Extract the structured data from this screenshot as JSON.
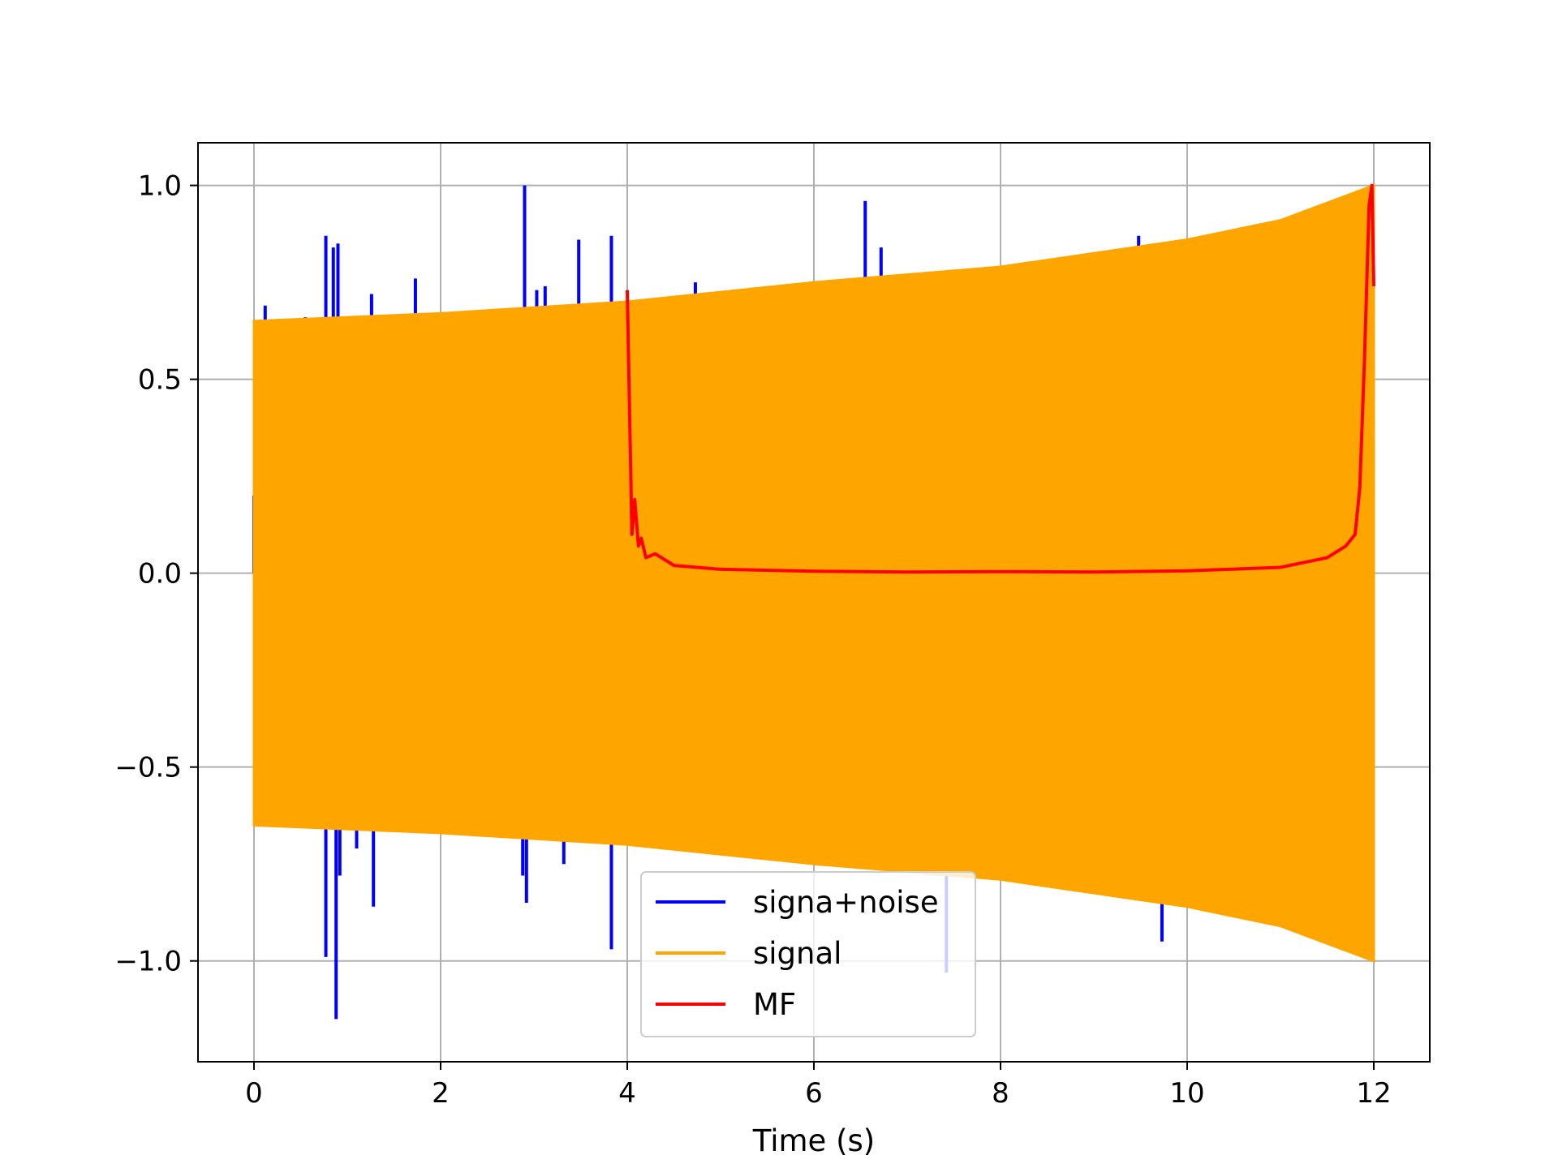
{
  "chart_data": {
    "type": "line",
    "title": "",
    "xlabel": "Time (s)",
    "ylabel": "",
    "xlim": [
      -0.6,
      12.6
    ],
    "ylim": [
      -1.26,
      1.11
    ],
    "xticks": [
      0,
      2,
      4,
      6,
      8,
      10,
      12
    ],
    "xtick_labels": [
      "0",
      "2",
      "4",
      "6",
      "8",
      "10",
      "12"
    ],
    "yticks": [
      1.0,
      0.5,
      0.0,
      -0.5,
      -1.0
    ],
    "ytick_labels": [
      "1.0",
      "0.5",
      "0.0",
      "−0.5",
      "−1.0"
    ],
    "grid": true,
    "legend_position": "lower-center",
    "series": [
      {
        "name": "signa+noise",
        "color": "#0000ff",
        "spikes": [
          {
            "x": 0.0,
            "y": 0.2
          },
          {
            "x": 0.12,
            "y": 0.69
          },
          {
            "x": 0.55,
            "y": 0.66
          },
          {
            "x": 0.77,
            "y": 0.87
          },
          {
            "x": 0.77,
            "y": -0.99
          },
          {
            "x": 0.85,
            "y": 0.84
          },
          {
            "x": 0.88,
            "y": -1.15
          },
          {
            "x": 0.9,
            "y": 0.85
          },
          {
            "x": 0.92,
            "y": -0.78
          },
          {
            "x": 1.1,
            "y": -0.71
          },
          {
            "x": 1.26,
            "y": 0.72
          },
          {
            "x": 1.28,
            "y": -0.86
          },
          {
            "x": 1.73,
            "y": 0.76
          },
          {
            "x": 2.9,
            "y": 1.0
          },
          {
            "x": 2.88,
            "y": -0.78
          },
          {
            "x": 2.92,
            "y": -0.85
          },
          {
            "x": 3.03,
            "y": 0.73
          },
          {
            "x": 3.12,
            "y": 0.74
          },
          {
            "x": 3.32,
            "y": -0.75
          },
          {
            "x": 3.48,
            "y": 0.86
          },
          {
            "x": 3.83,
            "y": 0.87
          },
          {
            "x": 3.83,
            "y": -0.97
          },
          {
            "x": 4.73,
            "y": 0.75
          },
          {
            "x": 6.55,
            "y": 0.96
          },
          {
            "x": 6.72,
            "y": 0.84
          },
          {
            "x": 9.48,
            "y": 0.87
          },
          {
            "x": 9.73,
            "y": -0.95
          },
          {
            "x": 7.42,
            "y": -1.03
          }
        ]
      },
      {
        "name": "signal",
        "color": "#ffa500",
        "x_range": [
          0,
          12
        ],
        "envelope": [
          {
            "x": 0,
            "amp": 0.65
          },
          {
            "x": 2,
            "amp": 0.67
          },
          {
            "x": 4,
            "amp": 0.7
          },
          {
            "x": 6,
            "amp": 0.75
          },
          {
            "x": 8,
            "amp": 0.79
          },
          {
            "x": 10,
            "amp": 0.86
          },
          {
            "x": 11,
            "amp": 0.91
          },
          {
            "x": 12,
            "amp": 1.0
          }
        ]
      },
      {
        "name": "MF",
        "color": "#ff0000",
        "points": [
          {
            "x": 4.0,
            "y": 0.73
          },
          {
            "x": 4.05,
            "y": 0.1
          },
          {
            "x": 4.08,
            "y": 0.19
          },
          {
            "x": 4.12,
            "y": 0.07
          },
          {
            "x": 4.15,
            "y": 0.09
          },
          {
            "x": 4.2,
            "y": 0.04
          },
          {
            "x": 4.3,
            "y": 0.05
          },
          {
            "x": 4.5,
            "y": 0.02
          },
          {
            "x": 5.0,
            "y": 0.01
          },
          {
            "x": 6.0,
            "y": 0.005
          },
          {
            "x": 7.0,
            "y": 0.003
          },
          {
            "x": 8.0,
            "y": 0.004
          },
          {
            "x": 9.0,
            "y": 0.003
          },
          {
            "x": 10.0,
            "y": 0.006
          },
          {
            "x": 11.0,
            "y": 0.015
          },
          {
            "x": 11.5,
            "y": 0.04
          },
          {
            "x": 11.7,
            "y": 0.07
          },
          {
            "x": 11.8,
            "y": 0.1
          },
          {
            "x": 11.85,
            "y": 0.22
          },
          {
            "x": 11.9,
            "y": 0.55
          },
          {
            "x": 11.95,
            "y": 0.95
          },
          {
            "x": 11.98,
            "y": 1.0
          },
          {
            "x": 12.0,
            "y": 0.74
          }
        ]
      }
    ]
  }
}
